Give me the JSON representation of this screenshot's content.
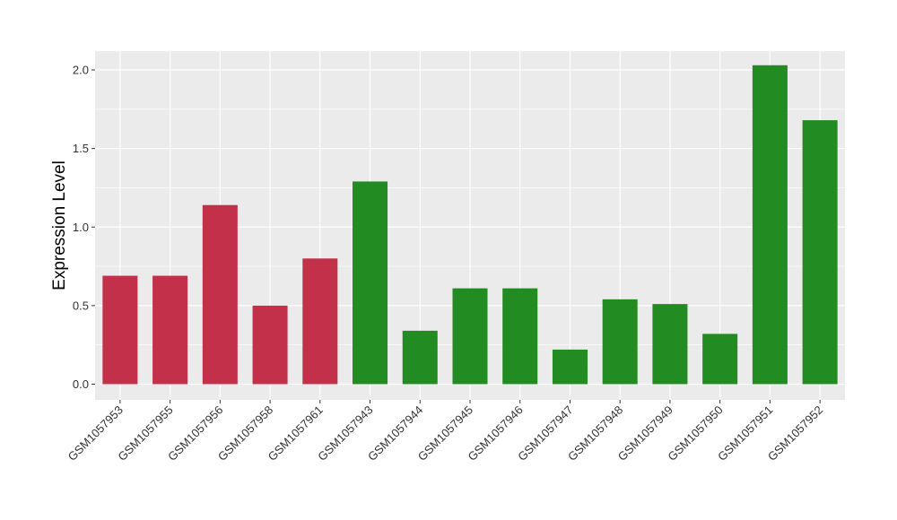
{
  "chart_data": {
    "type": "bar",
    "title": "",
    "xlabel": "",
    "ylabel": "Expression Level",
    "ylim": [
      -0.1,
      2.12
    ],
    "yticks": [
      0.0,
      0.5,
      1.0,
      1.5,
      2.0
    ],
    "ytick_labels": [
      "0.0",
      "0.5",
      "1.0",
      "1.5",
      "2.0"
    ],
    "grid": true,
    "legend": "none",
    "panel_background": "#EBEBEB",
    "grid_color": "#FFFFFF",
    "categories": [
      "GSM1057953",
      "GSM1057955",
      "GSM1057956",
      "GSM1057958",
      "GSM1057961",
      "GSM1057943",
      "GSM1057944",
      "GSM1057945",
      "GSM1057946",
      "GSM1057947",
      "GSM1057948",
      "GSM1057949",
      "GSM1057950",
      "GSM1057951",
      "GSM1057952"
    ],
    "values": [
      0.69,
      0.69,
      1.14,
      0.5,
      0.8,
      1.29,
      0.34,
      0.61,
      0.61,
      0.22,
      0.54,
      0.51,
      0.32,
      2.03,
      1.68
    ],
    "bar_colors": [
      "#C3304A",
      "#C3304A",
      "#C3304A",
      "#C3304A",
      "#C3304A",
      "#228B22",
      "#228B22",
      "#228B22",
      "#228B22",
      "#228B22",
      "#228B22",
      "#228B22",
      "#228B22",
      "#228B22",
      "#228B22"
    ]
  }
}
